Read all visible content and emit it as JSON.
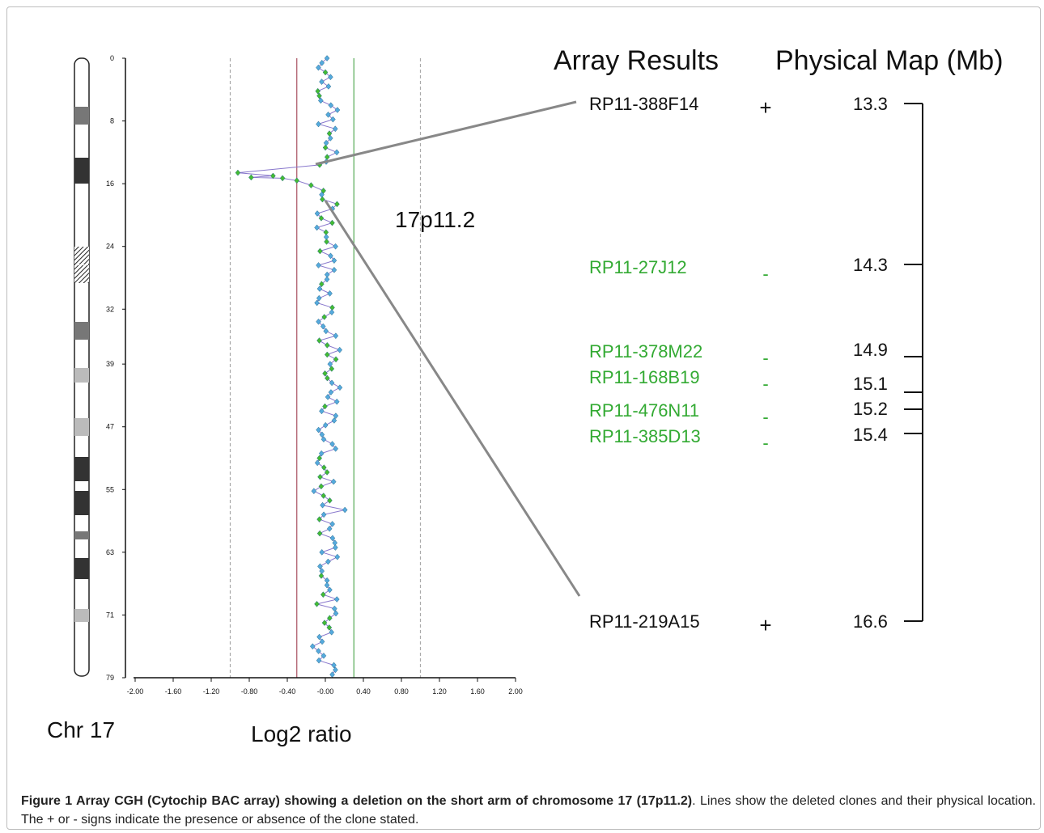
{
  "figure": {
    "chromosome_label": "Chr 17",
    "xlabel": "Log2 ratio",
    "region_label": "17p11.2",
    "headers": {
      "array": "Array Results",
      "map": "Physical Map (Mb)"
    }
  },
  "clones": [
    {
      "name": "RP11-388F14",
      "sign": "+",
      "mb": "13.3",
      "status": "present"
    },
    {
      "name": "RP11-27J12",
      "sign": "-",
      "mb": "14.3",
      "status": "deleted"
    },
    {
      "name": "RP11-378M22",
      "sign": "-",
      "mb": "14.9",
      "status": "deleted"
    },
    {
      "name": "RP11-168B19",
      "sign": "-",
      "mb": "15.1",
      "status": "deleted"
    },
    {
      "name": "RP11-476N11",
      "sign": "-",
      "mb": "15.2",
      "status": "deleted"
    },
    {
      "name": "RP11-385D13",
      "sign": "-",
      "mb": "15.4",
      "status": "deleted"
    },
    {
      "name": "RP11-219A15",
      "sign": "+",
      "mb": "16.6",
      "status": "present"
    }
  ],
  "chart_data": {
    "type": "scatter",
    "xlabel": "Log2 ratio",
    "xlim": [
      -2.0,
      2.0
    ],
    "ylim": [
      0,
      79
    ],
    "x_ticks": [
      "-2.00",
      "-1.60",
      "-1.20",
      "-0.80",
      "-0.40",
      "-0.00",
      "0.40",
      "0.80",
      "1.20",
      "1.60",
      "2.00"
    ],
    "y_ticks": [
      "0",
      "8",
      "16",
      "24",
      "32",
      "39",
      "47",
      "55",
      "63",
      "71",
      "79"
    ],
    "threshold_lines": [
      {
        "x": -1.0,
        "color": "#aaaaaa",
        "style": "dashed"
      },
      {
        "x": -0.3,
        "color": "#a85060",
        "style": "solid"
      },
      {
        "x": 0.3,
        "color": "#55aa55",
        "style": "solid"
      },
      {
        "x": 1.0,
        "color": "#aaaaaa",
        "style": "dashed"
      }
    ],
    "deletion_points": [
      {
        "x": -0.06,
        "y": 13.6
      },
      {
        "x": -0.92,
        "y": 14.6
      },
      {
        "x": -0.78,
        "y": 15.2
      },
      {
        "x": -0.55,
        "y": 15.0
      },
      {
        "x": -0.45,
        "y": 15.3
      },
      {
        "x": -0.3,
        "y": 15.6
      },
      {
        "x": -0.15,
        "y": 16.2
      },
      {
        "x": -0.02,
        "y": 16.9
      }
    ],
    "colors": {
      "green": "#44bb33",
      "blue": "#55aadd",
      "line": "#8877cc",
      "clone_present": "#111111",
      "clone_deleted": "#33aa33"
    }
  },
  "caption": {
    "bold": "Figure 1 Array CGH (Cytochip BAC array) showing a deletion on the short arm of chromosome 17 (17p11.2)",
    "text": ". Lines show the deleted clones and their physical location. The + or - signs indicate the presence or absence of the clone stated."
  }
}
